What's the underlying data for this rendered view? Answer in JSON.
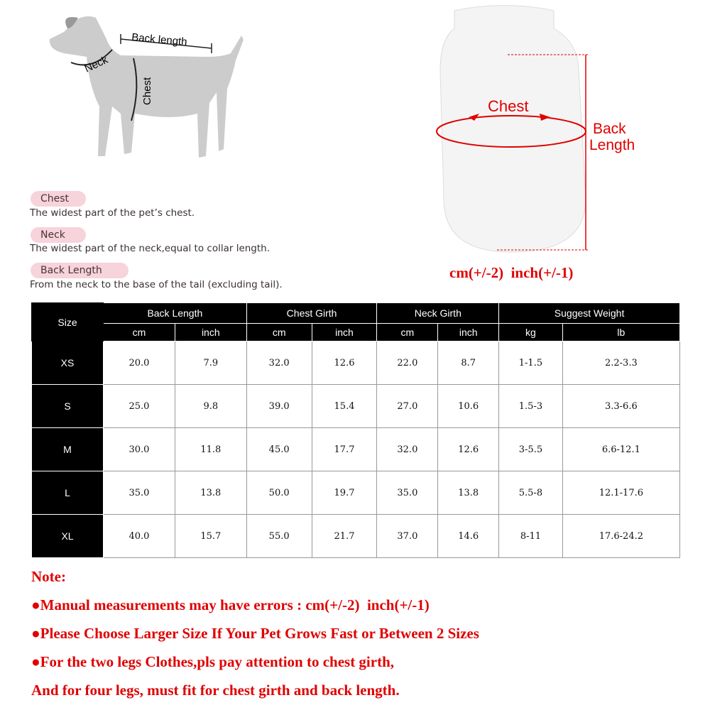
{
  "diagram": {
    "dog_labels": {
      "back_length": "Back length",
      "neck": "Neck",
      "chest": "Chest"
    },
    "garment_labels": {
      "chest": "Chest",
      "back_length_line1": "Back",
      "back_length_line2": "Length"
    },
    "tolerance": "cm(+/-2)  inch(+/-1)",
    "accent_color": "#e00000"
  },
  "definitions": [
    {
      "term": "Chest",
      "description": "The widest part of the pet’s chest."
    },
    {
      "term": "Neck",
      "description": "The widest part of the neck,equal to collar length."
    },
    {
      "term": "Back Length",
      "description": "From the neck to the base of the tail (excluding tail)."
    }
  ],
  "table": {
    "size_header": "Size",
    "groups": [
      "Back Length",
      "Chest Girth",
      "Neck Girth",
      "Suggest Weight"
    ],
    "units": [
      "cm",
      "inch",
      "cm",
      "inch",
      "cm",
      "inch",
      "kg",
      "lb"
    ],
    "rows": [
      {
        "size": "XS",
        "values": [
          "20.0",
          "7.9",
          "32.0",
          "12.6",
          "22.0",
          "8.7",
          "1-1.5",
          "2.2-3.3"
        ]
      },
      {
        "size": "S",
        "values": [
          "25.0",
          "9.8",
          "39.0",
          "15.4",
          "27.0",
          "10.6",
          "1.5-3",
          "3.3-6.6"
        ]
      },
      {
        "size": "M",
        "values": [
          "30.0",
          "11.8",
          "45.0",
          "17.7",
          "32.0",
          "12.6",
          "3-5.5",
          "6.6-12.1"
        ]
      },
      {
        "size": "L",
        "values": [
          "35.0",
          "13.8",
          "50.0",
          "19.7",
          "35.0",
          "13.8",
          "5.5-8",
          "12.1-17.6"
        ]
      },
      {
        "size": "XL",
        "values": [
          "40.0",
          "15.7",
          "55.0",
          "21.7",
          "37.0",
          "14.6",
          "8-11",
          "17.6-24.2"
        ]
      }
    ]
  },
  "notes": {
    "title": "Note:",
    "lines": [
      "●Manual measurements may have errors : cm(+/-2)  inch(+/-1)",
      "●Please Choose Larger Size If Your Pet Grows Fast or Between 2 Sizes",
      "●For the two legs Clothes,pls pay attention to chest girth,",
      "And for four legs, must fit for chest girth and back length."
    ]
  }
}
